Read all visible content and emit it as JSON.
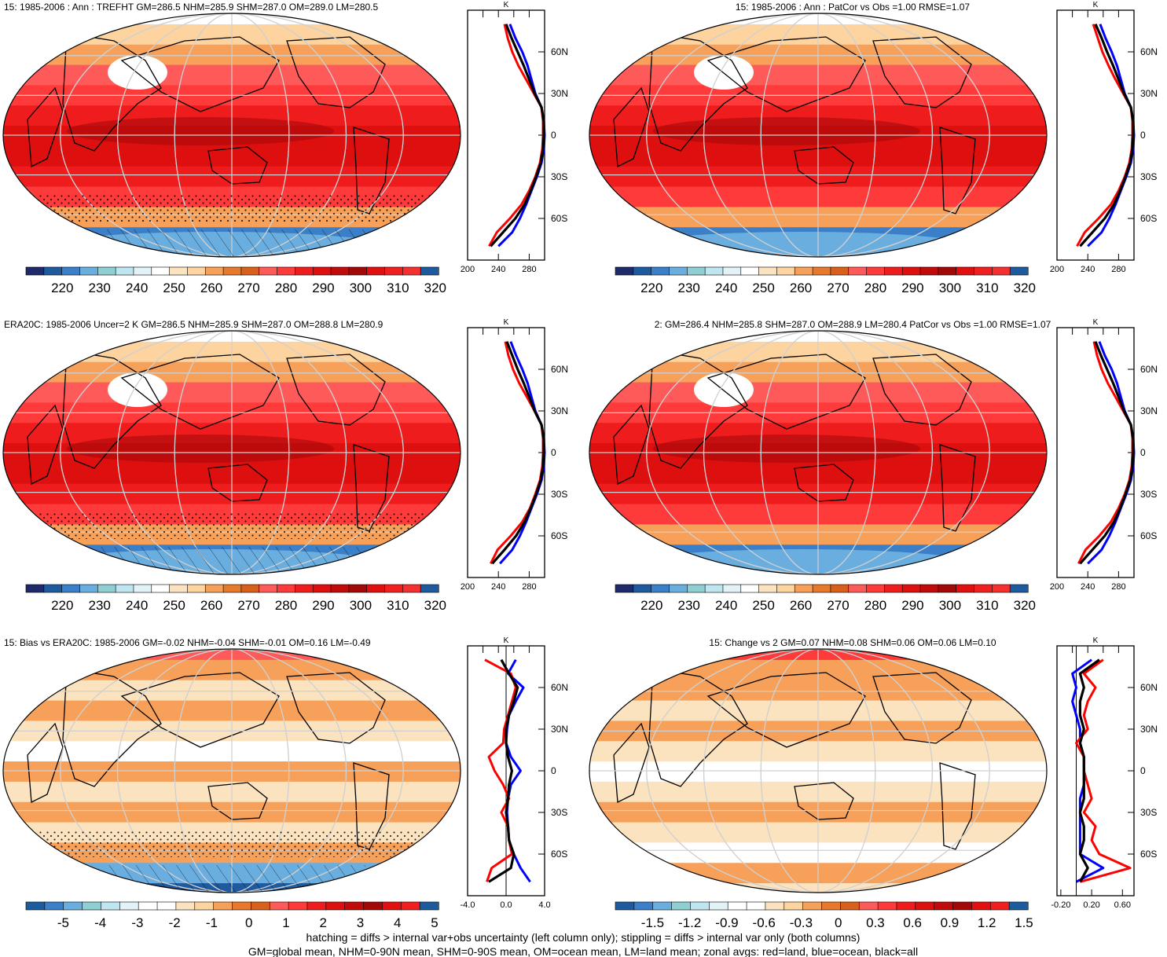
{
  "figure": {
    "footer_line1": "hatching = diffs > internal var+obs uncertainty (left column only); stippling = diffs > internal var only (both columns)",
    "footer_line2": "GM=global mean, NHM=0-90N mean, SHM=0-90S mean, OM=ocean mean, LM=land mean; zonal avgs: red=land, blue=ocean, black=all",
    "zonal_unit": "K",
    "lat_ticks": [
      "60N",
      "30N",
      "0",
      "30S",
      "60S"
    ],
    "colors": {
      "land": "#ff0000",
      "ocean": "#0000ff",
      "all": "#000000",
      "grid": "#d0d0d0"
    }
  },
  "chart_data": [
    {
      "type": "heatmap",
      "title": "15: 1985-2006 : Ann : TREFHT GM=286.5 NHM=285.9 SHM=287.0 OM=289.0 LM=280.5",
      "colorbar_ticks": [
        "220",
        "230",
        "240",
        "250",
        "260",
        "270",
        "280",
        "290",
        "300",
        "310",
        "320"
      ],
      "colorbar_colors": [
        "#1f2a6b",
        "#1e5a9e",
        "#3a7fc7",
        "#6aaee0",
        "#8fcfd4",
        "#bfe6f0",
        "#e2f3f8",
        "#ffffff",
        "#fbe3c0",
        "#fdd3a0",
        "#f6a05a",
        "#e8782a",
        "#d8601a",
        "#ff5a5a",
        "#ff3a3a",
        "#ee1c1c",
        "#dd0f0f",
        "#c10a0a",
        "#a30808",
        "#e01010",
        "#f02020",
        "#f53030",
        "#1e5a9e"
      ],
      "map_style": "temperature",
      "zonal": {
        "xlim": [
          200,
          300
        ],
        "xticks": [
          "200",
          "240",
          "280"
        ],
        "xtick_values": [
          200,
          240,
          280
        ],
        "lat": [
          80,
          70,
          60,
          50,
          40,
          30,
          20,
          10,
          0,
          -10,
          -20,
          -30,
          -40,
          -50,
          -60,
          -70,
          -80
        ],
        "series": [
          {
            "name": "land",
            "values": [
              248,
              252,
              258,
              266,
              276,
              286,
              296,
              298,
              298,
              297,
              294,
              288,
              280,
              270,
              255,
              238,
              228
            ]
          },
          {
            "name": "ocean",
            "values": [
              255,
              262,
              271,
              278,
              283,
              288,
              296,
              299,
              300,
              299,
              296,
              290,
              283,
              276,
              268,
              258,
              240
            ]
          },
          {
            "name": "all",
            "values": [
              250,
              257,
              265,
              273,
              280,
              287,
              296,
              299,
              299,
              298,
              295,
              289,
              282,
              274,
              262,
              246,
              230
            ]
          }
        ]
      }
    },
    {
      "type": "heatmap",
      "title": "15: 1985-2006 : Ann : PatCor vs Obs =1.00 RMSE=1.07",
      "colorbar_ticks": [
        "220",
        "230",
        "240",
        "250",
        "260",
        "270",
        "280",
        "290",
        "300",
        "310",
        "320"
      ],
      "colorbar_colors": [
        "#1f2a6b",
        "#1e5a9e",
        "#3a7fc7",
        "#6aaee0",
        "#8fcfd4",
        "#bfe6f0",
        "#e2f3f8",
        "#ffffff",
        "#fbe3c0",
        "#fdd3a0",
        "#f6a05a",
        "#e8782a",
        "#d8601a",
        "#ff5a5a",
        "#ff3a3a",
        "#ee1c1c",
        "#dd0f0f",
        "#c10a0a",
        "#a30808",
        "#e01010",
        "#f02020",
        "#f53030",
        "#1e5a9e"
      ],
      "map_style": "temperature",
      "zonal": {
        "xlim": [
          200,
          300
        ],
        "xticks": [
          "200",
          "240",
          "280"
        ],
        "xtick_values": [
          200,
          240,
          280
        ],
        "lat": [
          80,
          70,
          60,
          50,
          40,
          30,
          20,
          10,
          0,
          -10,
          -20,
          -30,
          -40,
          -50,
          -60,
          -70,
          -80
        ],
        "series": [
          {
            "name": "land",
            "values": [
              247,
              253,
              259,
              267,
              276,
              286,
              296,
              298,
              298,
              297,
              294,
              288,
              280,
              270,
              254,
              236,
              226
            ]
          },
          {
            "name": "ocean",
            "values": [
              256,
              263,
              271,
              278,
              283,
              288,
              296,
              299,
              300,
              299,
              296,
              290,
              283,
              276,
              268,
              258,
              240
            ]
          },
          {
            "name": "all",
            "values": [
              250,
              258,
              265,
              273,
              280,
              287,
              296,
              299,
              299,
              298,
              295,
              289,
              282,
              274,
              262,
              246,
              230
            ]
          }
        ]
      }
    },
    {
      "type": "heatmap",
      "title": "ERA20C: 1985-2006 Uncer=2 K GM=286.5 NHM=285.9 SHM=287.0 OM=288.8 LM=280.9",
      "colorbar_ticks": [
        "220",
        "230",
        "240",
        "250",
        "260",
        "270",
        "280",
        "290",
        "300",
        "310",
        "320"
      ],
      "colorbar_colors": [
        "#1f2a6b",
        "#1e5a9e",
        "#3a7fc7",
        "#6aaee0",
        "#8fcfd4",
        "#bfe6f0",
        "#e2f3f8",
        "#ffffff",
        "#fbe3c0",
        "#fdd3a0",
        "#f6a05a",
        "#e8782a",
        "#d8601a",
        "#ff5a5a",
        "#ff3a3a",
        "#ee1c1c",
        "#dd0f0f",
        "#c10a0a",
        "#a30808",
        "#e01010",
        "#f02020",
        "#f53030",
        "#1e5a9e"
      ],
      "map_style": "temperature",
      "zonal": {
        "xlim": [
          200,
          300
        ],
        "xticks": [
          "200",
          "240",
          "280"
        ],
        "xtick_values": [
          200,
          240,
          280
        ],
        "lat": [
          80,
          70,
          60,
          50,
          40,
          30,
          20,
          10,
          0,
          -10,
          -20,
          -30,
          -40,
          -50,
          -60,
          -70,
          -80
        ],
        "series": [
          {
            "name": "land",
            "values": [
              249,
              253,
              259,
              267,
              277,
              287,
              296,
              298,
              298,
              297,
              294,
              288,
              281,
              271,
              256,
              239,
              230
            ]
          },
          {
            "name": "ocean",
            "values": [
              256,
              263,
              271,
              278,
              283,
              288,
              296,
              299,
              300,
              299,
              296,
              290,
              283,
              276,
              268,
              258,
              242
            ]
          },
          {
            "name": "all",
            "values": [
              251,
              258,
              265,
              273,
              280,
              287,
              296,
              299,
              299,
              298,
              295,
              289,
              282,
              274,
              263,
              248,
              232
            ]
          }
        ]
      }
    },
    {
      "type": "heatmap",
      "title": "2: GM=286.4 NHM=285.8 SHM=287.0 OM=288.9 LM=280.4 PatCor vs Obs =1.00 RMSE=1.07",
      "colorbar_ticks": [
        "220",
        "230",
        "240",
        "250",
        "260",
        "270",
        "280",
        "290",
        "300",
        "310",
        "320"
      ],
      "colorbar_colors": [
        "#1f2a6b",
        "#1e5a9e",
        "#3a7fc7",
        "#6aaee0",
        "#8fcfd4",
        "#bfe6f0",
        "#e2f3f8",
        "#ffffff",
        "#fbe3c0",
        "#fdd3a0",
        "#f6a05a",
        "#e8782a",
        "#d8601a",
        "#ff5a5a",
        "#ff3a3a",
        "#ee1c1c",
        "#dd0f0f",
        "#c10a0a",
        "#a30808",
        "#e01010",
        "#f02020",
        "#f53030",
        "#1e5a9e"
      ],
      "map_style": "temperature",
      "zonal": {
        "xlim": [
          200,
          300
        ],
        "xticks": [
          "200",
          "240",
          "280"
        ],
        "xtick_values": [
          200,
          240,
          280
        ],
        "lat": [
          80,
          70,
          60,
          50,
          40,
          30,
          20,
          10,
          0,
          -10,
          -20,
          -30,
          -40,
          -50,
          -60,
          -70,
          -80
        ],
        "series": [
          {
            "name": "land",
            "values": [
              248,
              252,
              258,
              266,
              276,
              286,
              296,
              298,
              298,
              297,
              294,
              288,
              280,
              270,
              255,
              237,
              228
            ]
          },
          {
            "name": "ocean",
            "values": [
              255,
              262,
              271,
              278,
              283,
              288,
              296,
              299,
              300,
              299,
              296,
              290,
              283,
              276,
              268,
              258,
              240
            ]
          },
          {
            "name": "all",
            "values": [
              250,
              257,
              265,
              273,
              280,
              287,
              296,
              299,
              299,
              298,
              295,
              289,
              282,
              274,
              262,
              246,
              230
            ]
          }
        ]
      }
    },
    {
      "type": "heatmap",
      "title": "15: Bias vs ERA20C: 1985-2006 GM=-0.02 NHM=-0.04 SHM=-0.01 OM=0.16 LM=-0.49",
      "colorbar_ticks": [
        "-5",
        "-4",
        "-3",
        "-2",
        "-1",
        "0",
        "1",
        "2",
        "3",
        "4",
        "5"
      ],
      "colorbar_colors": [
        "#1e5a9e",
        "#3a7fc7",
        "#6aaee0",
        "#8fcfd4",
        "#bfe6f0",
        "#e2f3f8",
        "#ffffff",
        "#ffffff",
        "#fbe3c0",
        "#fdd3a0",
        "#f6a05a",
        "#e8782a",
        "#d8601a",
        "#ff5a5a",
        "#ff3a3a",
        "#ee1c1c",
        "#dd0f0f",
        "#c10a0a",
        "#a30808",
        "#e01010",
        "#f02020",
        "#1e5a9e"
      ],
      "map_style": "bias",
      "zonal": {
        "xlim": [
          -4,
          4
        ],
        "xticks": [
          "-4.0",
          "0.0",
          "4.0"
        ],
        "xtick_values": [
          -4,
          0,
          4
        ],
        "lat": [
          80,
          70,
          60,
          50,
          40,
          30,
          20,
          10,
          0,
          -10,
          -20,
          -30,
          -40,
          -50,
          -60,
          -70,
          -80
        ],
        "series": [
          {
            "name": "land",
            "values": [
              -2.2,
              0.5,
              1.0,
              0.6,
              0.2,
              -0.2,
              -0.3,
              -1.8,
              -1.2,
              -0.3,
              0.3,
              -0.5,
              0.2,
              0.3,
              0.6,
              -1.5,
              -2.0
            ]
          },
          {
            "name": "ocean",
            "values": [
              1.0,
              0.2,
              1.8,
              1.0,
              0.3,
              0.1,
              0.0,
              0.5,
              1.5,
              0.5,
              0.2,
              0.1,
              0.2,
              0.3,
              0.8,
              1.5,
              2.5
            ]
          },
          {
            "name": "all",
            "values": [
              -0.5,
              0.3,
              1.2,
              0.8,
              0.3,
              0.0,
              0.0,
              0.2,
              0.6,
              0.3,
              0.2,
              0.0,
              0.2,
              0.3,
              0.8,
              0.5,
              -1.8
            ]
          }
        ]
      }
    },
    {
      "type": "heatmap",
      "title": "15: Change vs 2 GM=0.07 NHM=0.08 SHM=0.06 OM=0.06 LM=0.10",
      "colorbar_ticks": [
        "-1.5",
        "-1.2",
        "-0.9",
        "-0.6",
        "-0.3",
        "0",
        "0.3",
        "0.6",
        "0.9",
        "1.2",
        "1.5"
      ],
      "colorbar_colors": [
        "#1e5a9e",
        "#3a7fc7",
        "#6aaee0",
        "#8fcfd4",
        "#bfe6f0",
        "#e2f3f8",
        "#ffffff",
        "#ffffff",
        "#fbe3c0",
        "#fdd3a0",
        "#f6a05a",
        "#e8782a",
        "#d8601a",
        "#ff5a5a",
        "#ff3a3a",
        "#ee1c1c",
        "#dd0f0f",
        "#c10a0a",
        "#a30808",
        "#e01010",
        "#f02020",
        "#1e5a9e"
      ],
      "map_style": "change",
      "zonal": {
        "xlim": [
          -0.25,
          0.75
        ],
        "xticks": [
          "-0.20",
          "0.20",
          "0.60"
        ],
        "xtick_values": [
          -0.2,
          0.2,
          0.6
        ],
        "lat": [
          80,
          70,
          60,
          50,
          40,
          30,
          20,
          10,
          0,
          -10,
          -20,
          -30,
          -40,
          -50,
          -60,
          -70,
          -80
        ],
        "series": [
          {
            "name": "land",
            "values": [
              0.35,
              0.1,
              0.25,
              0.15,
              0.1,
              0.15,
              0.0,
              0.1,
              0.1,
              0.15,
              0.2,
              0.1,
              0.25,
              0.2,
              0.3,
              0.7,
              0.05
            ]
          },
          {
            "name": "ocean",
            "values": [
              0.2,
              -0.05,
              0.0,
              -0.05,
              0.0,
              0.05,
              0.05,
              0.1,
              0.1,
              0.1,
              0.05,
              0.05,
              0.05,
              0.05,
              0.05,
              0.35,
              0.0
            ]
          },
          {
            "name": "all",
            "values": [
              0.3,
              0.05,
              0.1,
              0.05,
              0.05,
              0.1,
              0.05,
              0.1,
              0.1,
              0.1,
              0.1,
              0.05,
              0.1,
              0.1,
              0.05,
              0.15,
              0.05
            ]
          }
        ]
      }
    }
  ]
}
